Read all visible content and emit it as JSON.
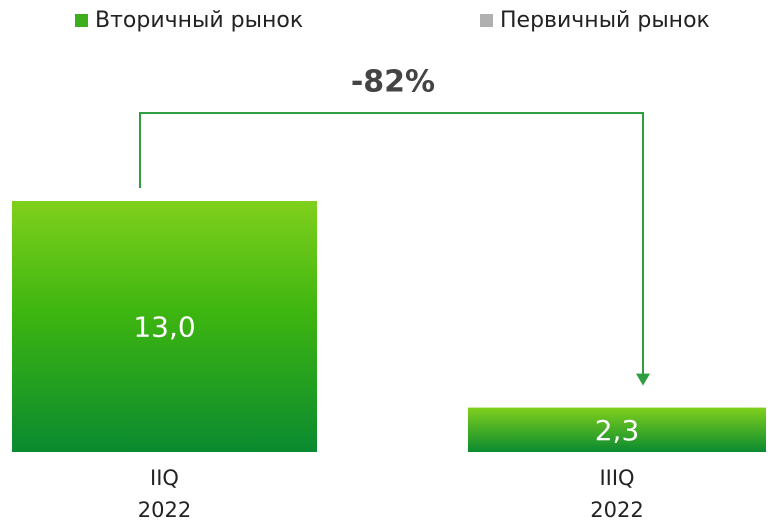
{
  "chart_data": {
    "type": "bar",
    "categories": [
      "IIQ\n2022",
      "IIIQ\n2022"
    ],
    "series": [
      {
        "name": "Вторичный рынок",
        "color": "#3fae1c",
        "values": [
          13.0,
          2.3
        ],
        "value_labels": [
          "13,0",
          "2,3"
        ]
      },
      {
        "name": "Первичный рынок",
        "color": "#b0b0b0",
        "values": [
          null,
          null
        ]
      }
    ],
    "annotation": "-82%",
    "annotation_color": "#2e9e3e"
  }
}
